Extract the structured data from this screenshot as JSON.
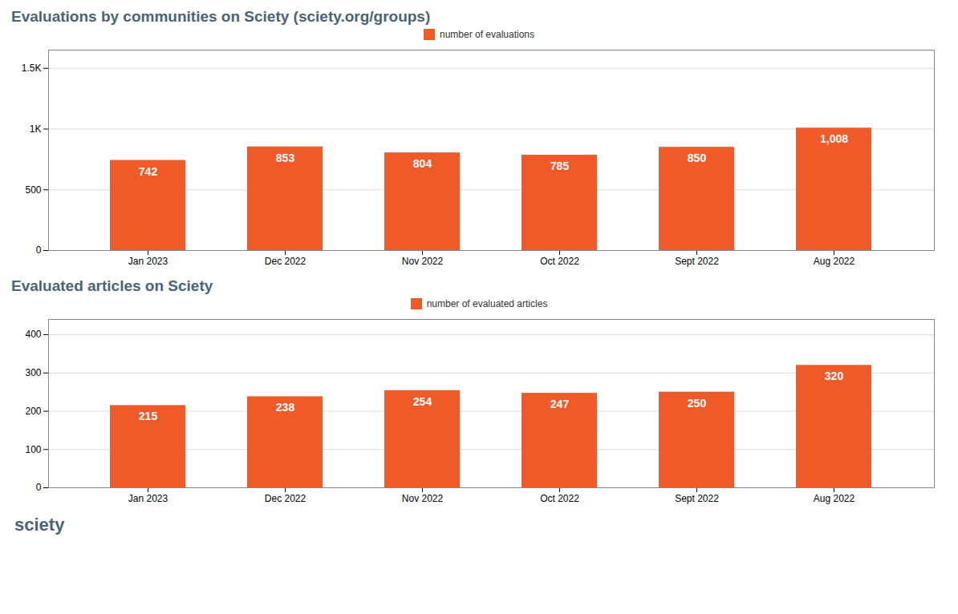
{
  "chart_data": [
    {
      "type": "bar",
      "title": "Evaluations by communities on Sciety (sciety.org/groups)",
      "categories": [
        "Jan 2023",
        "Dec 2022",
        "Nov 2022",
        "Oct 2022",
        "Sept 2022",
        "Aug 2022"
      ],
      "series": [
        {
          "name": "number of evaluations",
          "color": "#f05a28",
          "values": [
            742,
            853,
            804,
            785,
            850,
            1008
          ],
          "value_labels": [
            "742",
            "853",
            "804",
            "785",
            "850",
            "1,008"
          ]
        }
      ],
      "ylim": [
        0,
        1650
      ],
      "yticks": [
        0,
        500,
        {
          "value": 1000,
          "label": "1K"
        },
        {
          "value": 1500,
          "label": "1.5K"
        }
      ],
      "grid": true,
      "legend": "top",
      "data_labels": true
    },
    {
      "type": "bar",
      "title": "Evaluated articles on Sciety",
      "categories": [
        "Jan 2023",
        "Dec 2022",
        "Nov 2022",
        "Oct 2022",
        "Sept 2022",
        "Aug 2022"
      ],
      "series": [
        {
          "name": "number of evaluated articles",
          "color": "#f05a28",
          "values": [
            215,
            238,
            254,
            247,
            250,
            320
          ]
        }
      ],
      "ylim": [
        0,
        440
      ],
      "yticks": [
        0,
        100,
        200,
        300,
        400
      ],
      "grid": true,
      "legend": "top",
      "data_labels": true,
      "annotations": [
        "sciety"
      ]
    }
  ]
}
